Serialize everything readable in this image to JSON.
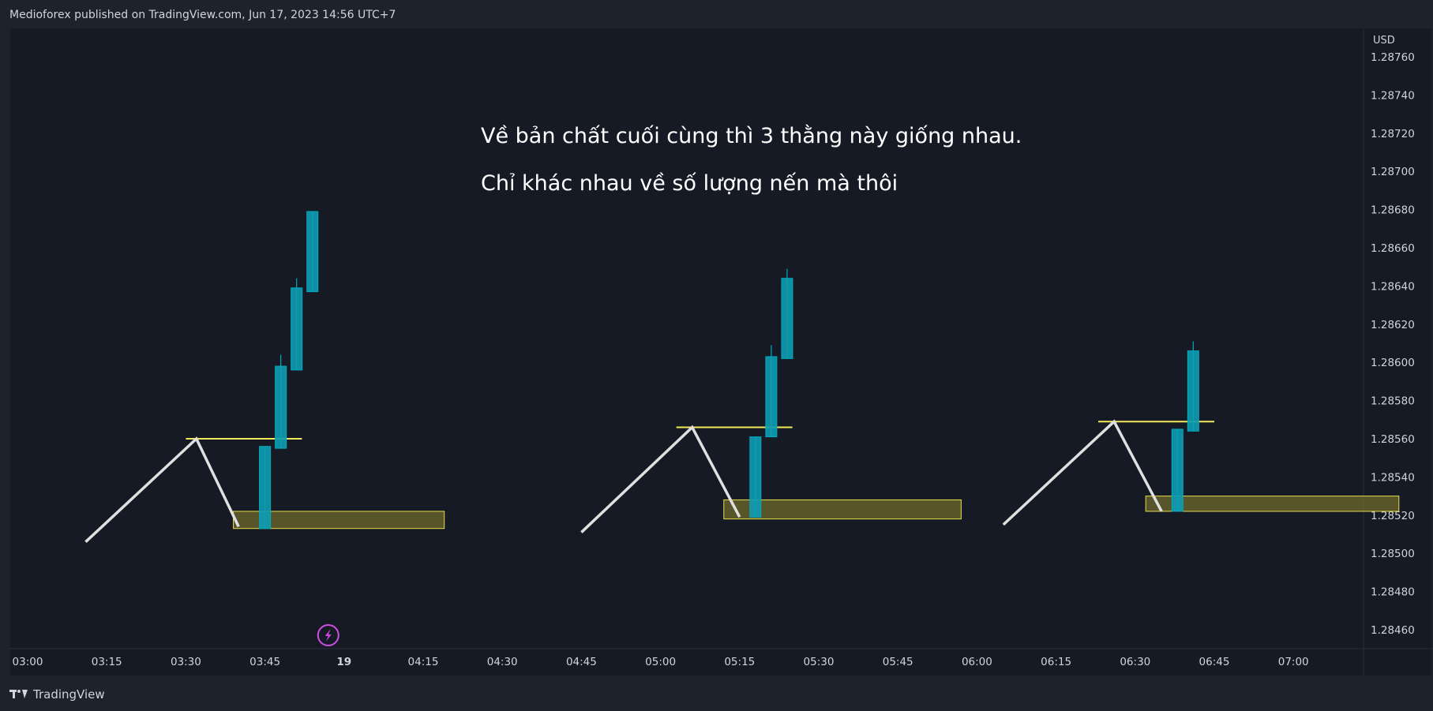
{
  "header": {
    "publisher": "Medioforex published on TradingView.com, Jun 17, 2023 14:56 UTC+7"
  },
  "footer": {
    "brand": "TradingView",
    "logo_icon": "tradingview-logo-icon"
  },
  "chart_data": {
    "type": "candlestick",
    "currency": "USD",
    "y_ticks": [
      "1.28760",
      "1.28740",
      "1.28720",
      "1.28700",
      "1.28680",
      "1.28660",
      "1.28640",
      "1.28620",
      "1.28600",
      "1.28580",
      "1.28560",
      "1.28540",
      "1.28520",
      "1.28500",
      "1.28480",
      "1.28460"
    ],
    "x_ticks": [
      "03:00",
      "03:15",
      "03:30",
      "03:45",
      "19",
      "04:15",
      "04:30",
      "04:45",
      "05:00",
      "05:15",
      "05:30",
      "05:45",
      "06:00",
      "06:15",
      "06:30",
      "06:45",
      "07:00"
    ],
    "annotations": [
      "Về bản chất cuối cùng thì 3 thằng này giống nhau.",
      "Chỉ khác nhau về số lượng nến mà thôi"
    ],
    "colors": {
      "candle": "#00acc1",
      "candle_fill": "#0e9cb3",
      "zigzag": "#e0e0e0",
      "level": "#f3ea5a",
      "zone_fill": "#6f6a2e",
      "zone_border": "#e6dc4a",
      "event_icon": "#d04ce3"
    },
    "groups": [
      {
        "zigzag": [
          [
            "03:11",
            1.28506
          ],
          [
            "03:32",
            1.2856
          ],
          [
            "03:40",
            1.28514
          ]
        ],
        "level": {
          "price": 1.2856,
          "from": "03:30",
          "to": "03:52"
        },
        "zone": {
          "from": "03:39",
          "to": "04:19",
          "top": 1.28522,
          "bottom": 1.28513
        },
        "candles": [
          {
            "t": "03:45",
            "o": 1.28513,
            "h": 1.28556,
            "l": 1.28513,
            "c": 1.28556
          },
          {
            "t": "03:48",
            "o": 1.28555,
            "h": 1.28604,
            "l": 1.28555,
            "c": 1.28598
          },
          {
            "t": "03:51",
            "o": 1.28596,
            "h": 1.28644,
            "l": 1.28596,
            "c": 1.28639
          },
          {
            "t": "03:54",
            "o": 1.28637,
            "h": 1.28679,
            "l": 1.28637,
            "c": 1.28679
          }
        ]
      },
      {
        "zigzag": [
          [
            "04:45",
            1.28511
          ],
          [
            "05:06",
            1.28566
          ],
          [
            "05:15",
            1.28519
          ]
        ],
        "level": {
          "price": 1.28566,
          "from": "05:03",
          "to": "05:25"
        },
        "zone": {
          "from": "05:12",
          "to": "05:57",
          "top": 1.28528,
          "bottom": 1.28518
        },
        "candles": [
          {
            "t": "05:18",
            "o": 1.28519,
            "h": 1.28561,
            "l": 1.28519,
            "c": 1.28561
          },
          {
            "t": "05:21",
            "o": 1.28561,
            "h": 1.28609,
            "l": 1.28561,
            "c": 1.28603
          },
          {
            "t": "05:24",
            "o": 1.28602,
            "h": 1.28649,
            "l": 1.28602,
            "c": 1.28644
          }
        ]
      },
      {
        "zigzag": [
          [
            "06:05",
            1.28515
          ],
          [
            "06:26",
            1.28569
          ],
          [
            "06:35",
            1.28522
          ]
        ],
        "level": {
          "price": 1.28569,
          "from": "06:23",
          "to": "06:45"
        },
        "zone": {
          "from": "06:32",
          "to": "07:20",
          "top": 1.2853,
          "bottom": 1.28522
        },
        "candles": [
          {
            "t": "06:38",
            "o": 1.28522,
            "h": 1.28565,
            "l": 1.28522,
            "c": 1.28565
          },
          {
            "t": "06:41",
            "o": 1.28564,
            "h": 1.28611,
            "l": 1.28564,
            "c": 1.28606
          }
        ]
      }
    ],
    "event_icon": {
      "name": "lightning-icon",
      "t": "03:57"
    }
  }
}
